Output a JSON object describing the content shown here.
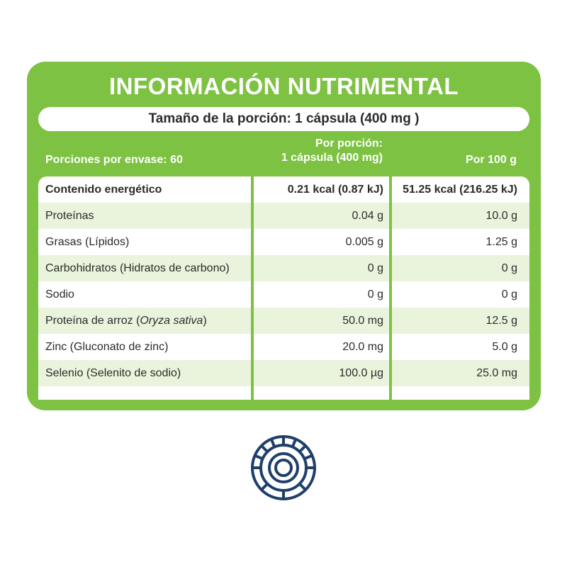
{
  "title": "INFORMACIÓN NUTRIMENTAL",
  "serving_size": "Tamaño de la porción: 1 cápsula (400 mg )",
  "servings_per_container": "Porciones por envase: 60",
  "column_headers": {
    "per_serving_line1": "Por porción:",
    "per_serving_line2": "1 cápsula (400 mg)",
    "per_100g": "Por 100 g"
  },
  "rows": [
    {
      "name": "Contenido energético",
      "per_serving": "0.21 kcal (0.87 kJ)",
      "per_100g": "51.25 kcal (216.25 kJ)"
    },
    {
      "name": "Proteínas",
      "per_serving": "0.04 g",
      "per_100g": "10.0 g"
    },
    {
      "name": "Grasas (Lípidos)",
      "per_serving": "0.005 g",
      "per_100g": "1.25 g"
    },
    {
      "name": "Carbohidratos (Hidratos de carbono)",
      "per_serving": "0 g",
      "per_100g": "0 g"
    },
    {
      "name": "Sodio",
      "per_serving": "0 g",
      "per_100g": "0 g"
    },
    {
      "name_prefix": "Proteína de arroz (",
      "name_italic": "Oryza sativa",
      "name_suffix": ")",
      "per_serving": "50.0 mg",
      "per_100g": "12.5 g"
    },
    {
      "name": "Zinc (Gluconato de zinc)",
      "per_serving": "20.0 mg",
      "per_100g": "5.0 g"
    },
    {
      "name": "Selenio (Selenito de sodio)",
      "per_serving": "100.0 µg",
      "per_100g": "25.0 mg"
    }
  ],
  "colors": {
    "green": "#7dc242",
    "light_green": "#eaf4dc",
    "navy": "#1f3f6b"
  },
  "icon": "capsule-circle-icon"
}
